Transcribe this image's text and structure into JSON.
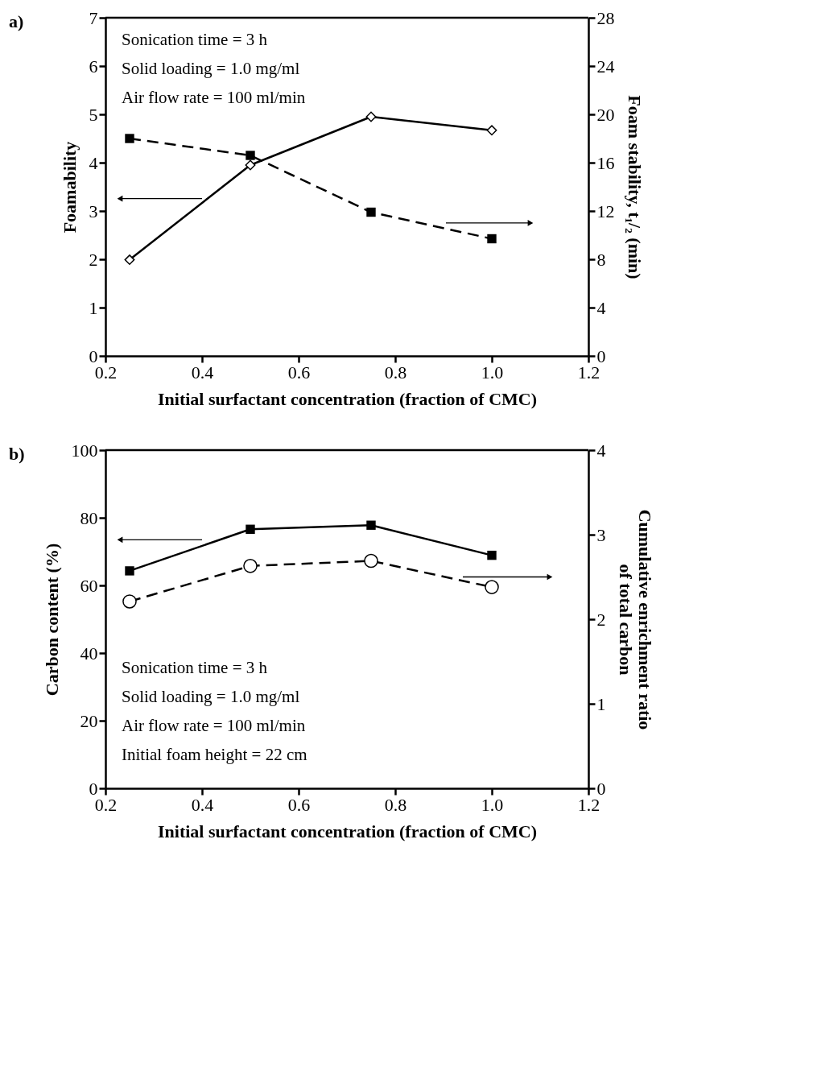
{
  "chart_data": [
    {
      "type": "line",
      "annotations": [
        "a)",
        "Sonication time = 3 h",
        "Solid loading = 1.0 mg/ml",
        "Air flow rate = 100 ml/min"
      ],
      "xlabel": "Initial surfactant concentration (fraction of CMC)",
      "ylabel": "Foamability",
      "y2label": "Foam stability, t₁/₂ (min)",
      "x": [
        0.25,
        0.5,
        0.75,
        1.0
      ],
      "series": [
        {
          "color": "#000000",
          "values": [
            1.99,
            3.95,
            4.95,
            4.67
          ],
          "marker": "diamond",
          "line_style": "solid"
        },
        {
          "color": "#000000",
          "values": [
            18.0,
            16.6,
            11.9,
            9.7
          ],
          "marker": "square",
          "line_style": "dashed",
          "axis": "y2"
        }
      ],
      "xlim": [
        0.2,
        1.2
      ],
      "xticks": [
        0.2,
        0.4,
        0.6,
        0.8,
        {
          "value": 1.0,
          "label": "1.0"
        },
        1.2
      ],
      "ylim": [
        0,
        7
      ],
      "yticks": [
        0,
        1,
        2,
        3,
        4,
        5,
        6,
        7
      ],
      "y2lim": [
        0,
        28
      ],
      "y2ticks": [
        0,
        4,
        8,
        12,
        16,
        20,
        24,
        28
      ],
      "grid": false,
      "legend": false
    },
    {
      "type": "line",
      "annotations": [
        "b)",
        "Sonication time = 3 h",
        "Solid loading = 1.0 mg/ml",
        "Air flow rate = 100 ml/min",
        "Initial foam height = 22 cm"
      ],
      "xlabel": "Initial surfactant concentration (fraction of CMC)",
      "ylabel": "Carbon content (%)",
      "y2label": "Cumulative enrichment ratio\nof total carbon",
      "x": [
        0.25,
        0.5,
        0.75,
        1.0
      ],
      "series": [
        {
          "color": "#000000",
          "values": [
            64.3,
            76.6,
            77.8,
            68.9
          ],
          "marker": "square",
          "line_style": "solid"
        },
        {
          "color": "#000000",
          "values": [
            2.21,
            2.63,
            2.69,
            2.38
          ],
          "marker": "circle",
          "line_style": "dashed",
          "axis": "y2"
        }
      ],
      "xlim": [
        0.2,
        1.2
      ],
      "xticks": [
        0.2,
        0.4,
        0.6,
        0.8,
        {
          "value": 1.0,
          "label": "1.0"
        },
        1.2
      ],
      "ylim": [
        0,
        100
      ],
      "yticks": [
        0,
        20,
        40,
        60,
        80,
        100
      ],
      "y2lim": [
        0,
        4
      ],
      "y2ticks": [
        0,
        1,
        2,
        3,
        4
      ],
      "grid": false,
      "legend": false
    }
  ]
}
